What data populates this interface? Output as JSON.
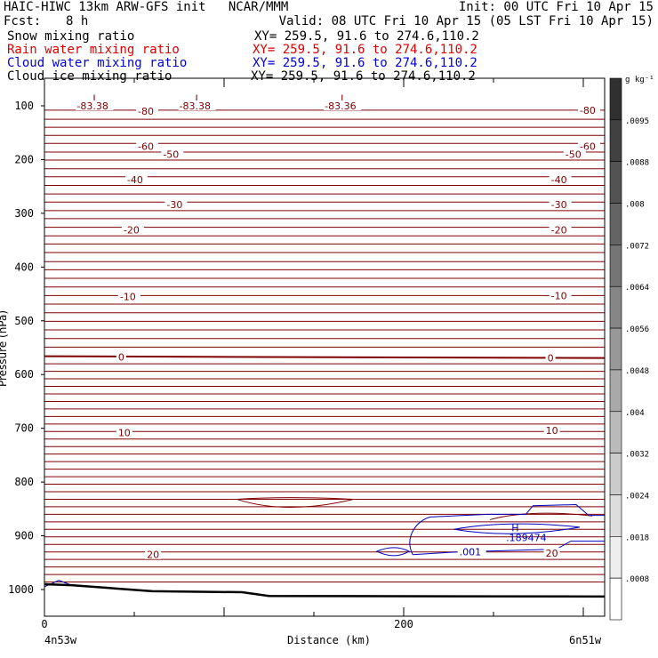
{
  "header": {
    "title": "HAIC-HIWC 13km ARW-GFS init   NCAR/MMM",
    "init": "Init: 00 UTC Fri 10 Apr 15",
    "fcst_label": "Fcst:",
    "fcst_value": "8 h",
    "valid": "Valid: 08 UTC Fri 10 Apr 15 (05 LST Fri 10 Apr 15)",
    "fields": [
      {
        "name": "Snow mixing ratio",
        "xy": "XY= 259.5, 91.6 to 274.6,110.2",
        "color": "#000000"
      },
      {
        "name": "Rain water mixing ratio",
        "xy": "XY= 259.5, 91.6 to 274.6,110.2",
        "color": "#e00000"
      },
      {
        "name": "Cloud water mixing ratio",
        "xy": "XY= 259.5, 91.6 to 274.6,110.2",
        "color": "#0000e0"
      },
      {
        "name": "Cloud ice mixing ratio",
        "xy": "XY= 259.5, 91.6 to 274.6,110.2",
        "color": "#000000"
      }
    ]
  },
  "chart_data": {
    "type": "contour",
    "ylabel": "Pressure (hPa)",
    "xlabel": "Distance (km)",
    "x_ticks": [
      0,
      200
    ],
    "y_ticks": [
      100,
      200,
      300,
      400,
      500,
      600,
      700,
      800,
      900,
      1000
    ],
    "xlim": [
      0,
      310
    ],
    "ylim": [
      1050,
      50
    ],
    "start_label": "4n53w",
    "end_label": "6n51w",
    "temperature_contours": {
      "color": "#800000",
      "levels": [
        -80,
        -70,
        -60,
        -50,
        -40,
        -30,
        -20,
        -10,
        0,
        10,
        20
      ],
      "pressures": [
        108,
        125,
        140,
        155,
        170,
        186,
        201,
        217,
        232,
        248,
        264,
        279,
        295,
        310,
        326,
        342,
        357,
        373,
        390,
        405,
        421,
        437,
        453,
        469,
        485,
        501,
        517,
        533,
        549,
        566,
        580,
        594,
        608,
        622,
        636,
        650,
        664,
        678,
        692,
        706,
        720,
        734,
        748,
        762,
        776,
        790,
        804,
        818,
        832,
        846,
        860,
        874,
        888,
        902,
        916,
        930,
        944,
        958,
        972,
        986
      ],
      "labels": [
        {
          "text": "-80",
          "x": 52,
          "p": 110
        },
        {
          "text": "-80",
          "x": 298,
          "p": 108
        },
        {
          "text": "-60",
          "x": 52,
          "p": 175
        },
        {
          "text": "-60",
          "x": 298,
          "p": 175
        },
        {
          "text": "-50",
          "x": 66,
          "p": 190
        },
        {
          "text": "-50",
          "x": 290,
          "p": 190
        },
        {
          "text": "-40",
          "x": 46,
          "p": 237
        },
        {
          "text": "-40",
          "x": 282,
          "p": 237
        },
        {
          "text": "-30",
          "x": 68,
          "p": 284
        },
        {
          "text": "-30",
          "x": 282,
          "p": 284
        },
        {
          "text": "-20",
          "x": 44,
          "p": 331
        },
        {
          "text": "-20",
          "x": 282,
          "p": 331
        },
        {
          "text": "-10",
          "x": 42,
          "p": 455
        },
        {
          "text": "-10",
          "x": 282,
          "p": 453
        },
        {
          "text": "0",
          "x": 41,
          "p": 567
        },
        {
          "text": "0",
          "x": 280,
          "p": 569
        },
        {
          "text": "10",
          "x": 41,
          "p": 708
        },
        {
          "text": "10",
          "x": 279,
          "p": 704
        },
        {
          "text": "20",
          "x": 57,
          "p": 935
        },
        {
          "text": "20",
          "x": 279,
          "p": 932
        }
      ],
      "lows": [
        {
          "label": "L",
          "value": "-83.38",
          "x": 18
        },
        {
          "label": "L",
          "value": "-83.38",
          "x": 75
        },
        {
          "label": "L",
          "value": "-83.36",
          "x": 156
        }
      ]
    },
    "cloud_water": {
      "color": "#0000c0",
      "contour_label": ".001",
      "max_label": "H",
      "max_value": ".189474"
    },
    "colorbar": {
      "unit": "g kg⁻¹",
      "labels": [
        ".0095",
        ".0088",
        ".008",
        ".0072",
        ".0064",
        ".0056",
        ".0048",
        ".004",
        ".0032",
        ".0024",
        ".0018",
        ".0008"
      ],
      "color_top": "#303030",
      "color_bottom": "#ffffff"
    }
  }
}
